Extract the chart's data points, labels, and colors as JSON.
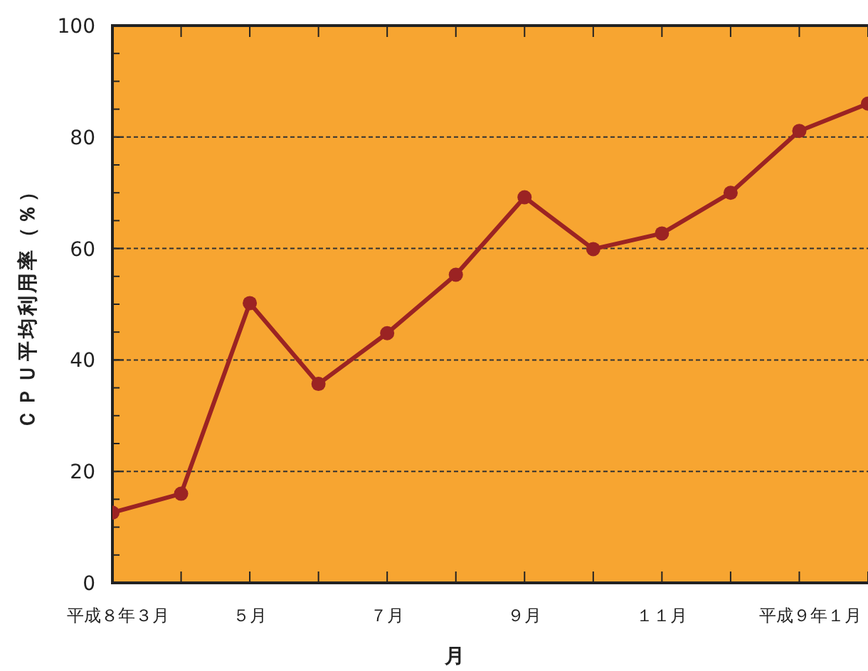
{
  "chart_data": {
    "type": "line",
    "xlabel": "月",
    "ylabel": "ＣＰＵ平均利用率（％）",
    "categories": [
      "平成８年３月",
      null,
      "５月",
      null,
      "７月",
      null,
      "９月",
      null,
      "１１月",
      null,
      "平成９年１月",
      null
    ],
    "series": [
      {
        "color": "#9b2323",
        "values": [
          12.6,
          16.0,
          50.2,
          35.7,
          44.8,
          55.3,
          69.2,
          59.9,
          62.7,
          70.0,
          81.1,
          86
        ]
      }
    ],
    "ylim": [
      0,
      100
    ],
    "yticks": [
      0,
      {
        "value": 5,
        "label": null
      },
      {
        "value": 10,
        "label": null
      },
      {
        "value": 15,
        "label": null
      },
      20,
      {
        "value": 25,
        "label": null
      },
      {
        "value": 30,
        "label": null
      },
      {
        "value": 35,
        "label": null
      },
      40,
      {
        "value": 45,
        "label": null
      },
      {
        "value": 50,
        "label": null
      },
      {
        "value": 55,
        "label": null
      },
      60,
      {
        "value": 65,
        "label": null
      },
      {
        "value": 70,
        "label": null
      },
      {
        "value": 75,
        "label": null
      },
      80,
      {
        "value": 85,
        "label": null
      },
      {
        "value": 90,
        "label": null
      },
      {
        "value": 95,
        "label": null
      },
      100
    ],
    "grid": "y",
    "marker": "circle",
    "line_style": "solid"
  }
}
